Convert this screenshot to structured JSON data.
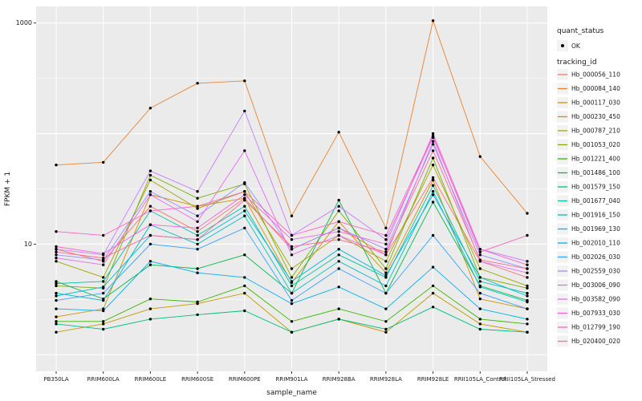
{
  "figure": {
    "bg": "#FFFFFF",
    "panel_bg": "#EBEBEB",
    "grid_color": "#FFFFFF",
    "point_color": "#000000",
    "text_color": "#1a1a1a",
    "tick_color": "#333333",
    "legend_key_bg": "#F2F2F2"
  },
  "chart_data": {
    "type": "line",
    "title": "",
    "xlabel": "sample_name",
    "ylabel": "FPKM + 1",
    "y_scale": "log10",
    "ylim_log10": [
      -0.15,
      3.15
    ],
    "y_tick_values": [
      10,
      1000
    ],
    "y_tick_labels": [
      "10",
      "1000"
    ],
    "y_grid_major": [
      1,
      10,
      100,
      1000
    ],
    "y_grid_minor_log10": [
      0.5,
      1.5,
      2.5
    ],
    "grid": true,
    "legend_position": "right",
    "categories": [
      "PB350LA",
      "RRIM600LA",
      "RRIM600LE",
      "RRIM600SE",
      "RRIM600PE",
      "RRIM901LA",
      "RRIM928BA",
      "RRIM928LA",
      "RRIM928LE",
      "RRII105LA_Control",
      "RRII105LA_Stressed"
    ],
    "legend": {
      "quant_status_title": "quant_status",
      "quant_status_items": [
        {
          "label": "OK",
          "marker": "point"
        }
      ],
      "tracking_id_title": "tracking_id"
    },
    "series": [
      {
        "name": "Hb_000056_110",
        "color": "#F8766D",
        "values": [
          9,
          7,
          22,
          13,
          26,
          9,
          14,
          8,
          40,
          7,
          5
        ]
      },
      {
        "name": "Hb_000084_140",
        "color": "#EA8331",
        "values": [
          52,
          55,
          170,
          285,
          300,
          18,
          103,
          14,
          1050,
          62,
          19
        ]
      },
      {
        "name": "Hb_000117_030",
        "color": "#D89000",
        "values": [
          2.2,
          2.6,
          28,
          22,
          26,
          4.5,
          16,
          5.5,
          38,
          3.2,
          2.6
        ]
      },
      {
        "name": "Hb_000230_450",
        "color": "#C09B00",
        "values": [
          1.6,
          1.9,
          2.6,
          2.9,
          3.6,
          1.6,
          2.1,
          1.6,
          3.6,
          1.9,
          1.6
        ]
      },
      {
        "name": "Hb_000787_210",
        "color": "#A3A500",
        "values": [
          7,
          5,
          38,
          21,
          30,
          6,
          12,
          7,
          52,
          6,
          4.2
        ]
      },
      {
        "name": "Hb_001053_020",
        "color": "#7CAE00",
        "values": [
          4.2,
          4,
          42,
          26,
          35,
          5,
          20,
          6,
          60,
          5,
          4
        ]
      },
      {
        "name": "Hb_001221_400",
        "color": "#39B600",
        "values": [
          2,
          2,
          3.2,
          3,
          4.2,
          2,
          2.6,
          2,
          4.2,
          2.1,
          1.9
        ]
      },
      {
        "name": "Hb_001486_100",
        "color": "#00BB4E",
        "values": [
          4.6,
          3.2,
          6.5,
          6,
          8,
          3.6,
          25,
          3.6,
          24,
          4.2,
          3.1
        ]
      },
      {
        "name": "Hb_001579_150",
        "color": "#00BF7D",
        "values": [
          1.9,
          1.7,
          2.1,
          2.3,
          2.5,
          1.6,
          2.1,
          1.7,
          2.7,
          1.7,
          1.6
        ]
      },
      {
        "name": "Hb_001677_040",
        "color": "#00C1A3",
        "values": [
          4.4,
          4.6,
          20,
          12,
          22,
          4.2,
          8,
          5,
          34,
          4.6,
          3.6
        ]
      },
      {
        "name": "Hb_001916_150",
        "color": "#00BFC4",
        "values": [
          3.6,
          3.1,
          15,
          10,
          18,
          3.6,
          7,
          4.2,
          30,
          4.1,
          3
        ]
      },
      {
        "name": "Hb_001969_130",
        "color": "#00BAE0",
        "values": [
          3.4,
          4.1,
          12,
          11,
          20,
          4.6,
          9,
          5.2,
          28,
          5,
          3.4
        ]
      },
      {
        "name": "Hb_002010_110",
        "color": "#00B0F6",
        "values": [
          2.6,
          2.5,
          7,
          5.5,
          5,
          2.9,
          4.1,
          2.6,
          6.2,
          2.6,
          2.1
        ]
      },
      {
        "name": "Hb_002026_030",
        "color": "#35A2FF",
        "values": [
          3.1,
          3.6,
          10,
          9,
          14,
          3.1,
          6,
          3.6,
          12,
          3.6,
          2.6
        ]
      },
      {
        "name": "Hb_002559_030",
        "color": "#9590FF",
        "values": [
          8,
          7.2,
          30,
          18,
          36,
          9,
          14,
          9,
          80,
          8,
          6
        ]
      },
      {
        "name": "Hb_003006_090",
        "color": "#C77CFF",
        "values": [
          9,
          8,
          46,
          30,
          160,
          12,
          22,
          11,
          92,
          9,
          7
        ]
      },
      {
        "name": "Hb_003582_090",
        "color": "#E76BF3",
        "values": [
          7.5,
          6.5,
          28,
          16,
          70,
          8,
          12,
          8,
          85,
          7,
          5.5
        ]
      },
      {
        "name": "Hb_007933_030",
        "color": "#FA62DB",
        "values": [
          9.5,
          8.2,
          15,
          14,
          28,
          11,
          13,
          10,
          100,
          9,
          6.5
        ]
      },
      {
        "name": "Hb_012799_190",
        "color": "#FF62BC",
        "values": [
          13,
          12,
          20,
          22,
          30,
          12,
          16,
          12,
          95,
          8.5,
          12
        ]
      },
      {
        "name": "Hb_020400_020",
        "color": "#FF6A98",
        "values": [
          8.5,
          7.5,
          12,
          11,
          25,
          9.5,
          11,
          8.5,
          70,
          7.2,
          6
        ]
      }
    ]
  }
}
